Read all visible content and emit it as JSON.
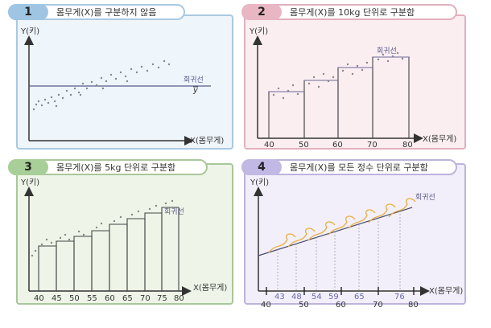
{
  "panels": [
    {
      "number": "1",
      "title": "몸무게(X)를 구분하지 않음",
      "ylabel": "Y(키)",
      "xlabel": "X(몸무게)",
      "regression_label": "회귀선",
      "ybar_label": "y"
    },
    {
      "number": "2",
      "title": "몸무게(X)를 10kg 단위로 구분함",
      "ylabel": "Y(키)",
      "xlabel": "X(몸무게)",
      "regression_label": "회귀선",
      "ticks": [
        "40",
        "50",
        "60",
        "70",
        "80"
      ]
    },
    {
      "number": "3",
      "title": "몸무게(X)를 5kg 단위로 구분함",
      "ylabel": "Y(키)",
      "xlabel": "X(몸무게)",
      "regression_label": "회귀선",
      "ticks": [
        "40",
        "45",
        "50",
        "55",
        "60",
        "65",
        "70",
        "75",
        "80"
      ]
    },
    {
      "number": "4",
      "title": "몸무게(X)를 모든 정수 단위로 구분함",
      "ylabel": "Y(키)",
      "xlabel": "X(몸무게)",
      "regression_label": "회귀선",
      "ticks_major": [
        "40",
        "50",
        "60",
        "70",
        "80"
      ],
      "ticks_minor": [
        "43",
        "48",
        "54",
        "59",
        "65",
        "76"
      ]
    }
  ],
  "colors": {
    "axis": "#333333",
    "regression": "#5a5a8a",
    "bars": "#444444",
    "dots": "#888888",
    "curves": "#e8b040",
    "tick_minor": "#6a6ab0"
  }
}
